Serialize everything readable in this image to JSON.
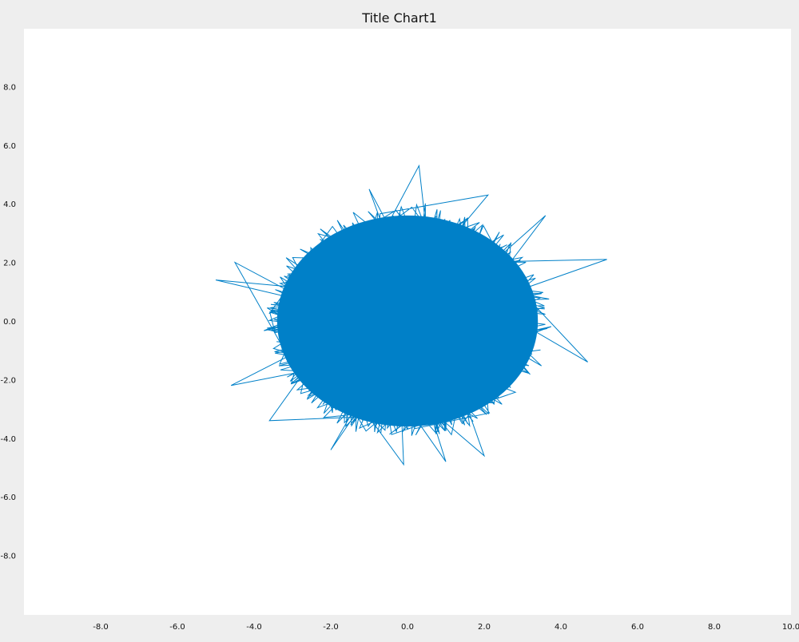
{
  "colors": {
    "background": "#eeeeee",
    "plot_area": "#ffffff",
    "series": "#0080c8",
    "text": "#111111"
  },
  "chart_data": {
    "type": "line",
    "title": "Title Chart1",
    "xlabel": "",
    "ylabel": "",
    "grid": false,
    "legend": "none",
    "xlim": [
      -10.0,
      10.0
    ],
    "ylim": [
      -10.0,
      10.0
    ],
    "x_ticks": [
      -8.0,
      -6.0,
      -4.0,
      -2.0,
      0.0,
      2.0,
      4.0,
      6.0,
      8.0,
      10.0
    ],
    "y_ticks": [
      8.0,
      6.0,
      4.0,
      2.0,
      0.0,
      -2.0,
      -4.0,
      -6.0,
      -8.0
    ],
    "x_tick_labels": [
      "-8.0",
      "-6.0",
      "-4.0",
      "-2.0",
      "0.0",
      "2.0",
      "4.0",
      "6.0",
      "8.0",
      "10.0"
    ],
    "y_tick_labels": [
      "8.0",
      "6.0",
      "4.0",
      "2.0",
      "0.0",
      "-2.0",
      "-4.0",
      "-6.0",
      "-8.0"
    ],
    "series": [
      {
        "description": "random walk of many points, approximately normally distributed around the origin",
        "x_center": 0.0,
        "y_center": 0.0,
        "x_std": 1.25,
        "y_std": 1.35,
        "samples": 6000,
        "outliers": [
          {
            "x": 0.3,
            "y": 5.3
          },
          {
            "x": 5.2,
            "y": 2.1
          },
          {
            "x": -5.0,
            "y": 1.4
          },
          {
            "x": -4.6,
            "y": -2.2
          },
          {
            "x": -0.1,
            "y": -4.9
          },
          {
            "x": 1.0,
            "y": -4.8
          },
          {
            "x": 2.0,
            "y": -4.6
          },
          {
            "x": 4.7,
            "y": -1.4
          },
          {
            "x": 3.6,
            "y": 3.6
          },
          {
            "x": 2.1,
            "y": 4.3
          },
          {
            "x": -1.0,
            "y": 4.5
          },
          {
            "x": -4.5,
            "y": 2.0
          },
          {
            "x": -2.0,
            "y": -4.4
          },
          {
            "x": -3.6,
            "y": -3.4
          }
        ]
      }
    ]
  }
}
